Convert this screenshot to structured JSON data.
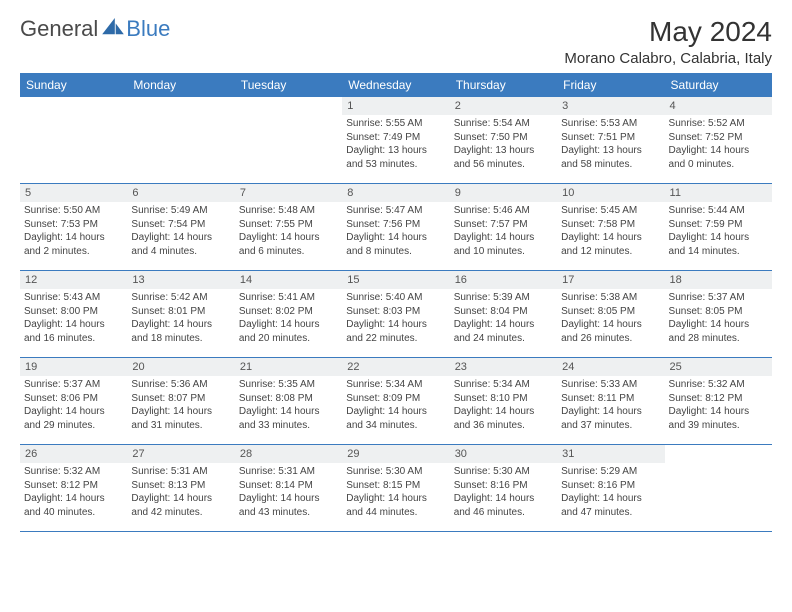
{
  "brand": {
    "text1": "General",
    "text2": "Blue"
  },
  "title": "May 2024",
  "location": "Morano Calabro, Calabria, Italy",
  "colors": {
    "header_bg": "#3b7bbf",
    "header_text": "#ffffff",
    "daynum_bg": "#eef0f1",
    "border": "#3b7bbf",
    "body_text": "#444444"
  },
  "weekdays": [
    "Sunday",
    "Monday",
    "Tuesday",
    "Wednesday",
    "Thursday",
    "Friday",
    "Saturday"
  ],
  "weeks": [
    [
      null,
      null,
      null,
      {
        "n": "1",
        "sr": "5:55 AM",
        "ss": "7:49 PM",
        "dl": "13 hours and 53 minutes."
      },
      {
        "n": "2",
        "sr": "5:54 AM",
        "ss": "7:50 PM",
        "dl": "13 hours and 56 minutes."
      },
      {
        "n": "3",
        "sr": "5:53 AM",
        "ss": "7:51 PM",
        "dl": "13 hours and 58 minutes."
      },
      {
        "n": "4",
        "sr": "5:52 AM",
        "ss": "7:52 PM",
        "dl": "14 hours and 0 minutes."
      }
    ],
    [
      {
        "n": "5",
        "sr": "5:50 AM",
        "ss": "7:53 PM",
        "dl": "14 hours and 2 minutes."
      },
      {
        "n": "6",
        "sr": "5:49 AM",
        "ss": "7:54 PM",
        "dl": "14 hours and 4 minutes."
      },
      {
        "n": "7",
        "sr": "5:48 AM",
        "ss": "7:55 PM",
        "dl": "14 hours and 6 minutes."
      },
      {
        "n": "8",
        "sr": "5:47 AM",
        "ss": "7:56 PM",
        "dl": "14 hours and 8 minutes."
      },
      {
        "n": "9",
        "sr": "5:46 AM",
        "ss": "7:57 PM",
        "dl": "14 hours and 10 minutes."
      },
      {
        "n": "10",
        "sr": "5:45 AM",
        "ss": "7:58 PM",
        "dl": "14 hours and 12 minutes."
      },
      {
        "n": "11",
        "sr": "5:44 AM",
        "ss": "7:59 PM",
        "dl": "14 hours and 14 minutes."
      }
    ],
    [
      {
        "n": "12",
        "sr": "5:43 AM",
        "ss": "8:00 PM",
        "dl": "14 hours and 16 minutes."
      },
      {
        "n": "13",
        "sr": "5:42 AM",
        "ss": "8:01 PM",
        "dl": "14 hours and 18 minutes."
      },
      {
        "n": "14",
        "sr": "5:41 AM",
        "ss": "8:02 PM",
        "dl": "14 hours and 20 minutes."
      },
      {
        "n": "15",
        "sr": "5:40 AM",
        "ss": "8:03 PM",
        "dl": "14 hours and 22 minutes."
      },
      {
        "n": "16",
        "sr": "5:39 AM",
        "ss": "8:04 PM",
        "dl": "14 hours and 24 minutes."
      },
      {
        "n": "17",
        "sr": "5:38 AM",
        "ss": "8:05 PM",
        "dl": "14 hours and 26 minutes."
      },
      {
        "n": "18",
        "sr": "5:37 AM",
        "ss": "8:05 PM",
        "dl": "14 hours and 28 minutes."
      }
    ],
    [
      {
        "n": "19",
        "sr": "5:37 AM",
        "ss": "8:06 PM",
        "dl": "14 hours and 29 minutes."
      },
      {
        "n": "20",
        "sr": "5:36 AM",
        "ss": "8:07 PM",
        "dl": "14 hours and 31 minutes."
      },
      {
        "n": "21",
        "sr": "5:35 AM",
        "ss": "8:08 PM",
        "dl": "14 hours and 33 minutes."
      },
      {
        "n": "22",
        "sr": "5:34 AM",
        "ss": "8:09 PM",
        "dl": "14 hours and 34 minutes."
      },
      {
        "n": "23",
        "sr": "5:34 AM",
        "ss": "8:10 PM",
        "dl": "14 hours and 36 minutes."
      },
      {
        "n": "24",
        "sr": "5:33 AM",
        "ss": "8:11 PM",
        "dl": "14 hours and 37 minutes."
      },
      {
        "n": "25",
        "sr": "5:32 AM",
        "ss": "8:12 PM",
        "dl": "14 hours and 39 minutes."
      }
    ],
    [
      {
        "n": "26",
        "sr": "5:32 AM",
        "ss": "8:12 PM",
        "dl": "14 hours and 40 minutes."
      },
      {
        "n": "27",
        "sr": "5:31 AM",
        "ss": "8:13 PM",
        "dl": "14 hours and 42 minutes."
      },
      {
        "n": "28",
        "sr": "5:31 AM",
        "ss": "8:14 PM",
        "dl": "14 hours and 43 minutes."
      },
      {
        "n": "29",
        "sr": "5:30 AM",
        "ss": "8:15 PM",
        "dl": "14 hours and 44 minutes."
      },
      {
        "n": "30",
        "sr": "5:30 AM",
        "ss": "8:16 PM",
        "dl": "14 hours and 46 minutes."
      },
      {
        "n": "31",
        "sr": "5:29 AM",
        "ss": "8:16 PM",
        "dl": "14 hours and 47 minutes."
      },
      null
    ]
  ],
  "labels": {
    "sunrise": "Sunrise:",
    "sunset": "Sunset:",
    "daylight": "Daylight:"
  }
}
